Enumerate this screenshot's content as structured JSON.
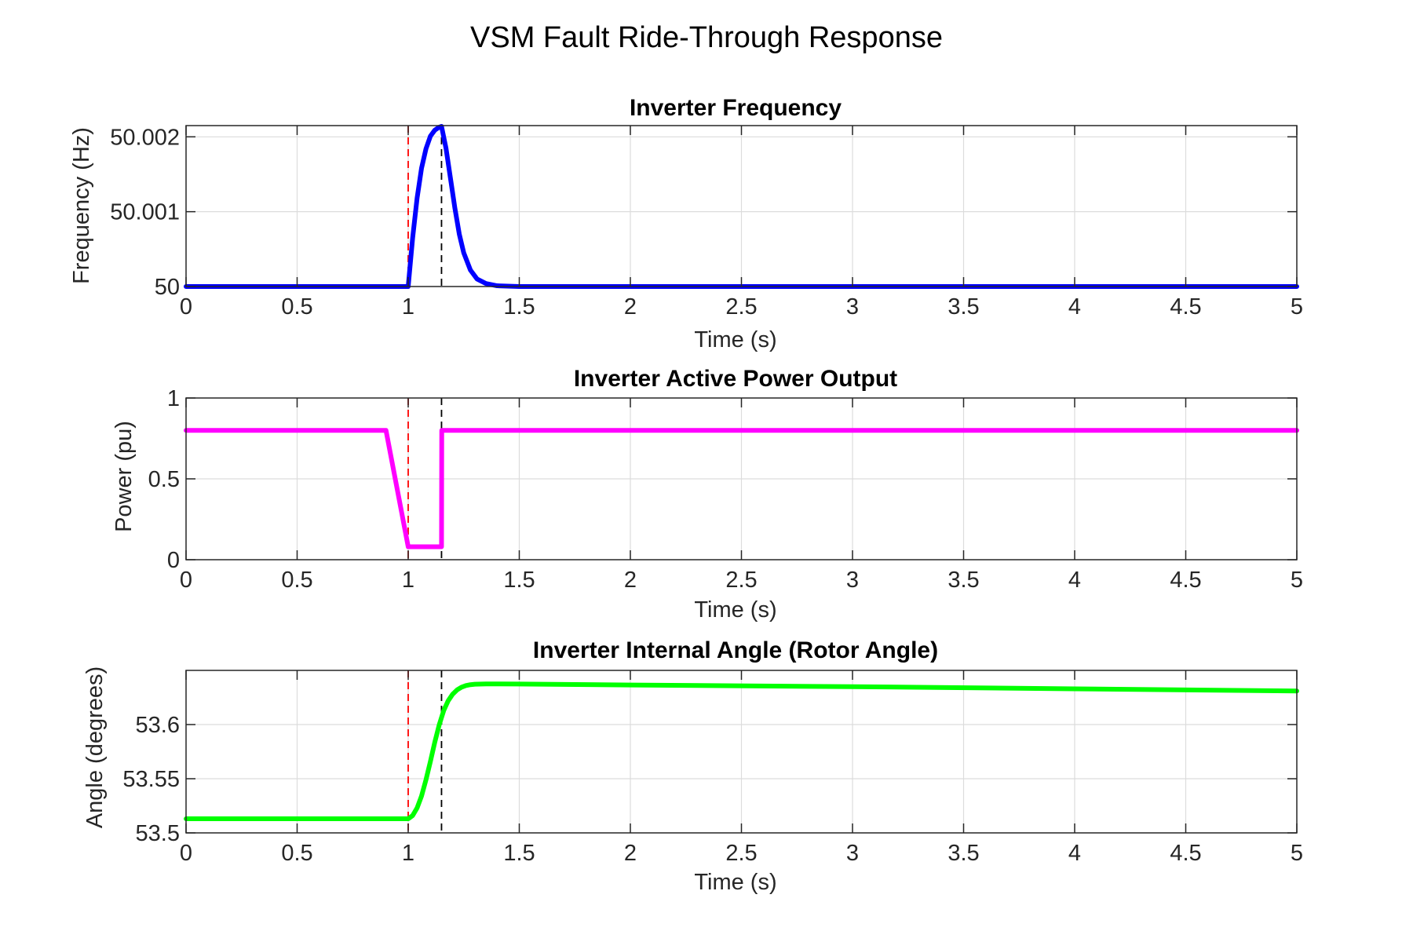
{
  "figure": {
    "title": "VSM Fault Ride-Through Response"
  },
  "colors": {
    "fault_start_marker": "#ff0000",
    "fault_clear_marker": "#000000",
    "grid": "#dcdcdc",
    "axes": "#262626"
  },
  "chart_data": [
    {
      "type": "line",
      "title": "Inverter Frequency",
      "xlabel": "Time (s)",
      "ylabel": "Frequency (Hz)",
      "xlim": [
        0,
        5
      ],
      "ylim": [
        50.0,
        50.00215
      ],
      "xticks": [
        0,
        0.5,
        1,
        1.5,
        2,
        2.5,
        3,
        3.5,
        4,
        4.5,
        5
      ],
      "xtick_labels": [
        "0",
        "0.5",
        "1",
        "1.5",
        "2",
        "2.5",
        "3",
        "3.5",
        "4",
        "4.5",
        "5"
      ],
      "yticks": [
        50.0,
        50.001,
        50.002
      ],
      "ytick_labels": [
        "50",
        "50.001",
        "50.002"
      ],
      "grid": true,
      "vlines": [
        {
          "x": 1.0,
          "color": "#ff0000",
          "style": "dashed"
        },
        {
          "x": 1.15,
          "color": "#000000",
          "style": "dashed"
        }
      ],
      "series": [
        {
          "color": "#0000ff",
          "x": [
            0,
            0.99,
            1.0,
            1.02,
            1.04,
            1.06,
            1.08,
            1.1,
            1.12,
            1.14,
            1.15,
            1.17,
            1.19,
            1.21,
            1.23,
            1.25,
            1.28,
            1.31,
            1.35,
            1.4,
            1.5,
            5
          ],
          "y": [
            50.0,
            50.0,
            50.0,
            50.00065,
            50.00118,
            50.00158,
            50.00184,
            50.00201,
            50.00209,
            50.00213,
            50.00214,
            50.00185,
            50.00145,
            50.00105,
            50.0007,
            50.00045,
            50.00022,
            50.0001,
            50.00004,
            50.00001,
            50.0,
            50.0
          ]
        }
      ]
    },
    {
      "type": "line",
      "title": "Inverter Active Power Output",
      "xlabel": "Time (s)",
      "ylabel": "Power (pu)",
      "xlim": [
        0,
        5
      ],
      "ylim": [
        0,
        1
      ],
      "xticks": [
        0,
        0.5,
        1,
        1.5,
        2,
        2.5,
        3,
        3.5,
        4,
        4.5,
        5
      ],
      "xtick_labels": [
        "0",
        "0.5",
        "1",
        "1.5",
        "2",
        "2.5",
        "3",
        "3.5",
        "4",
        "4.5",
        "5"
      ],
      "yticks": [
        0,
        0.5,
        1
      ],
      "ytick_labels": [
        "0",
        "0.5",
        "1"
      ],
      "grid": true,
      "vlines": [
        {
          "x": 1.0,
          "color": "#ff0000",
          "style": "dashed"
        },
        {
          "x": 1.15,
          "color": "#000000",
          "style": "dashed"
        }
      ],
      "series": [
        {
          "color": "#ff00ff",
          "x": [
            0,
            0.9,
            1.0,
            1.15,
            1.151,
            5
          ],
          "y": [
            0.8,
            0.8,
            0.08,
            0.08,
            0.8,
            0.8
          ]
        }
      ]
    },
    {
      "type": "line",
      "title": "Inverter Internal Angle (Rotor Angle)",
      "xlabel": "Time (s)",
      "ylabel": "Angle (degrees)",
      "xlim": [
        0,
        5
      ],
      "ylim": [
        53.5,
        53.65
      ],
      "xticks": [
        0,
        0.5,
        1,
        1.5,
        2,
        2.5,
        3,
        3.5,
        4,
        4.5,
        5
      ],
      "xtick_labels": [
        "0",
        "0.5",
        "1",
        "1.5",
        "2",
        "2.5",
        "3",
        "3.5",
        "4",
        "4.5",
        "5"
      ],
      "yticks": [
        53.5,
        53.55,
        53.6
      ],
      "ytick_labels": [
        "53.5",
        "53.55",
        "53.6"
      ],
      "grid": true,
      "vlines": [
        {
          "x": 1.0,
          "color": "#ff0000",
          "style": "dashed"
        },
        {
          "x": 1.15,
          "color": "#000000",
          "style": "dashed"
        }
      ],
      "series": [
        {
          "color": "#00ff00",
          "x": [
            0,
            1.0,
            1.02,
            1.04,
            1.06,
            1.08,
            1.1,
            1.12,
            1.14,
            1.16,
            1.18,
            1.2,
            1.22,
            1.24,
            1.26,
            1.28,
            1.3,
            1.35,
            1.4,
            1.5,
            2,
            3,
            4,
            5
          ],
          "y": [
            53.513,
            53.513,
            53.516,
            53.523,
            53.534,
            53.549,
            53.566,
            53.584,
            53.6,
            53.613,
            53.622,
            53.628,
            53.632,
            53.6345,
            53.636,
            53.6368,
            53.6372,
            53.6375,
            53.6375,
            53.6374,
            53.6365,
            53.635,
            53.633,
            53.631
          ]
        }
      ]
    }
  ]
}
